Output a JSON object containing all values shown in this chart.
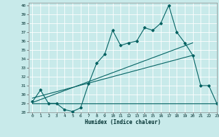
{
  "xlabel": "Humidex (Indice chaleur)",
  "bg_color": "#c8eaea",
  "grid_color": "#ffffff",
  "line_color": "#006060",
  "xlim": [
    -0.5,
    23
  ],
  "ylim": [
    28,
    40.3
  ],
  "xticks": [
    0,
    1,
    2,
    3,
    4,
    5,
    6,
    7,
    8,
    9,
    10,
    11,
    12,
    13,
    14,
    15,
    16,
    17,
    18,
    19,
    20,
    21,
    22,
    23
  ],
  "yticks": [
    28,
    29,
    30,
    31,
    32,
    33,
    34,
    35,
    36,
    37,
    38,
    39,
    40
  ],
  "main_x": [
    0,
    1,
    2,
    3,
    4,
    5,
    6,
    7,
    8,
    9,
    10,
    11,
    12,
    13,
    14,
    15,
    16,
    17,
    18,
    19,
    20,
    21,
    22,
    23
  ],
  "main_y": [
    29.2,
    30.5,
    29.0,
    29.0,
    28.3,
    28.1,
    28.5,
    31.2,
    33.5,
    34.5,
    37.2,
    35.5,
    35.8,
    36.0,
    37.5,
    37.2,
    38.0,
    40.0,
    37.0,
    35.8,
    34.4,
    31.0,
    31.0,
    29.0
  ],
  "line1_x": [
    0,
    23
  ],
  "line1_y": [
    29.0,
    29.0
  ],
  "line2_x": [
    0,
    20
  ],
  "line2_y": [
    29.6,
    34.4
  ],
  "line3_x": [
    0,
    20
  ],
  "line3_y": [
    29.1,
    35.8
  ]
}
